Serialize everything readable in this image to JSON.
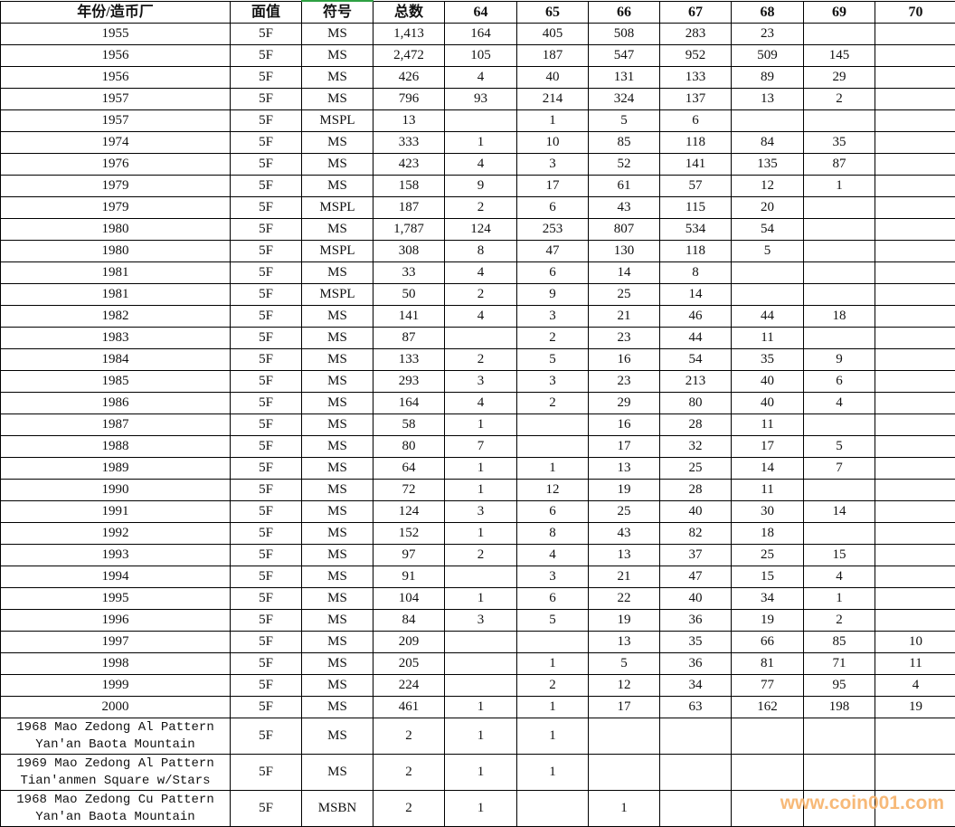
{
  "columns": [
    "年份/造币厂",
    "面值",
    "符号",
    "总数",
    "64",
    "65",
    "66",
    "67",
    "68",
    "69",
    "70"
  ],
  "rows": [
    [
      "1955",
      "5F",
      "MS",
      "1,413",
      "164",
      "405",
      "508",
      "283",
      "23",
      "",
      ""
    ],
    [
      "1956",
      "5F",
      "MS",
      "2,472",
      "105",
      "187",
      "547",
      "952",
      "509",
      "145",
      ""
    ],
    [
      "1956",
      "5F",
      "MS",
      "426",
      "4",
      "40",
      "131",
      "133",
      "89",
      "29",
      ""
    ],
    [
      "1957",
      "5F",
      "MS",
      "796",
      "93",
      "214",
      "324",
      "137",
      "13",
      "2",
      ""
    ],
    [
      "1957",
      "5F",
      "MSPL",
      "13",
      "",
      "1",
      "5",
      "6",
      "",
      "",
      ""
    ],
    [
      "1974",
      "5F",
      "MS",
      "333",
      "1",
      "10",
      "85",
      "118",
      "84",
      "35",
      ""
    ],
    [
      "1976",
      "5F",
      "MS",
      "423",
      "4",
      "3",
      "52",
      "141",
      "135",
      "87",
      ""
    ],
    [
      "1979",
      "5F",
      "MS",
      "158",
      "9",
      "17",
      "61",
      "57",
      "12",
      "1",
      ""
    ],
    [
      "1979",
      "5F",
      "MSPL",
      "187",
      "2",
      "6",
      "43",
      "115",
      "20",
      "",
      ""
    ],
    [
      "1980",
      "5F",
      "MS",
      "1,787",
      "124",
      "253",
      "807",
      "534",
      "54",
      "",
      ""
    ],
    [
      "1980",
      "5F",
      "MSPL",
      "308",
      "8",
      "47",
      "130",
      "118",
      "5",
      "",
      ""
    ],
    [
      "1981",
      "5F",
      "MS",
      "33",
      "4",
      "6",
      "14",
      "8",
      "",
      "",
      ""
    ],
    [
      "1981",
      "5F",
      "MSPL",
      "50",
      "2",
      "9",
      "25",
      "14",
      "",
      "",
      ""
    ],
    [
      "1982",
      "5F",
      "MS",
      "141",
      "4",
      "3",
      "21",
      "46",
      "44",
      "18",
      ""
    ],
    [
      "1983",
      "5F",
      "MS",
      "87",
      "",
      "2",
      "23",
      "44",
      "11",
      "",
      ""
    ],
    [
      "1984",
      "5F",
      "MS",
      "133",
      "2",
      "5",
      "16",
      "54",
      "35",
      "9",
      ""
    ],
    [
      "1985",
      "5F",
      "MS",
      "293",
      "3",
      "3",
      "23",
      "213",
      "40",
      "6",
      ""
    ],
    [
      "1986",
      "5F",
      "MS",
      "164",
      "4",
      "2",
      "29",
      "80",
      "40",
      "4",
      ""
    ],
    [
      "1987",
      "5F",
      "MS",
      "58",
      "1",
      "",
      "16",
      "28",
      "11",
      "",
      ""
    ],
    [
      "1988",
      "5F",
      "MS",
      "80",
      "7",
      "",
      "17",
      "32",
      "17",
      "5",
      ""
    ],
    [
      "1989",
      "5F",
      "MS",
      "64",
      "1",
      "1",
      "13",
      "25",
      "14",
      "7",
      ""
    ],
    [
      "1990",
      "5F",
      "MS",
      "72",
      "1",
      "12",
      "19",
      "28",
      "11",
      "",
      ""
    ],
    [
      "1991",
      "5F",
      "MS",
      "124",
      "3",
      "6",
      "25",
      "40",
      "30",
      "14",
      ""
    ],
    [
      "1992",
      "5F",
      "MS",
      "152",
      "1",
      "8",
      "43",
      "82",
      "18",
      "",
      ""
    ],
    [
      "1993",
      "5F",
      "MS",
      "97",
      "2",
      "4",
      "13",
      "37",
      "25",
      "15",
      ""
    ],
    [
      "1994",
      "5F",
      "MS",
      "91",
      "",
      "3",
      "21",
      "47",
      "15",
      "4",
      ""
    ],
    [
      "1995",
      "5F",
      "MS",
      "104",
      "1",
      "6",
      "22",
      "40",
      "34",
      "1",
      ""
    ],
    [
      "1996",
      "5F",
      "MS",
      "84",
      "3",
      "5",
      "19",
      "36",
      "19",
      "2",
      ""
    ],
    [
      "1997",
      "5F",
      "MS",
      "209",
      "",
      "",
      "13",
      "35",
      "66",
      "85",
      "10"
    ],
    [
      "1998",
      "5F",
      "MS",
      "205",
      "",
      "1",
      "5",
      "36",
      "81",
      "71",
      "11"
    ],
    [
      "1999",
      "5F",
      "MS",
      "224",
      "",
      "2",
      "12",
      "34",
      "77",
      "95",
      "4"
    ],
    [
      "2000",
      "5F",
      "MS",
      "461",
      "1",
      "1",
      "17",
      "63",
      "162",
      "198",
      "19"
    ],
    [
      "1968 Mao Zedong Al Pattern Yan'an Baota Mountain",
      "5F",
      "MS",
      "2",
      "1",
      "1",
      "",
      "",
      "",
      "",
      ""
    ],
    [
      "1969 Mao Zedong Al Pattern Tian'anmen Square w/Stars",
      "5F",
      "MS",
      "2",
      "1",
      "1",
      "",
      "",
      "",
      "",
      ""
    ],
    [
      "1968 Mao Zedong Cu Pattern Yan'an Baota Mountain",
      "5F",
      "MSBN",
      "2",
      "1",
      "",
      "1",
      "",
      "",
      "",
      ""
    ]
  ],
  "watermark": "www.coin001.com",
  "colors": {
    "watermark": "#f7b26a",
    "selected_column_marker": "#2ea043"
  }
}
